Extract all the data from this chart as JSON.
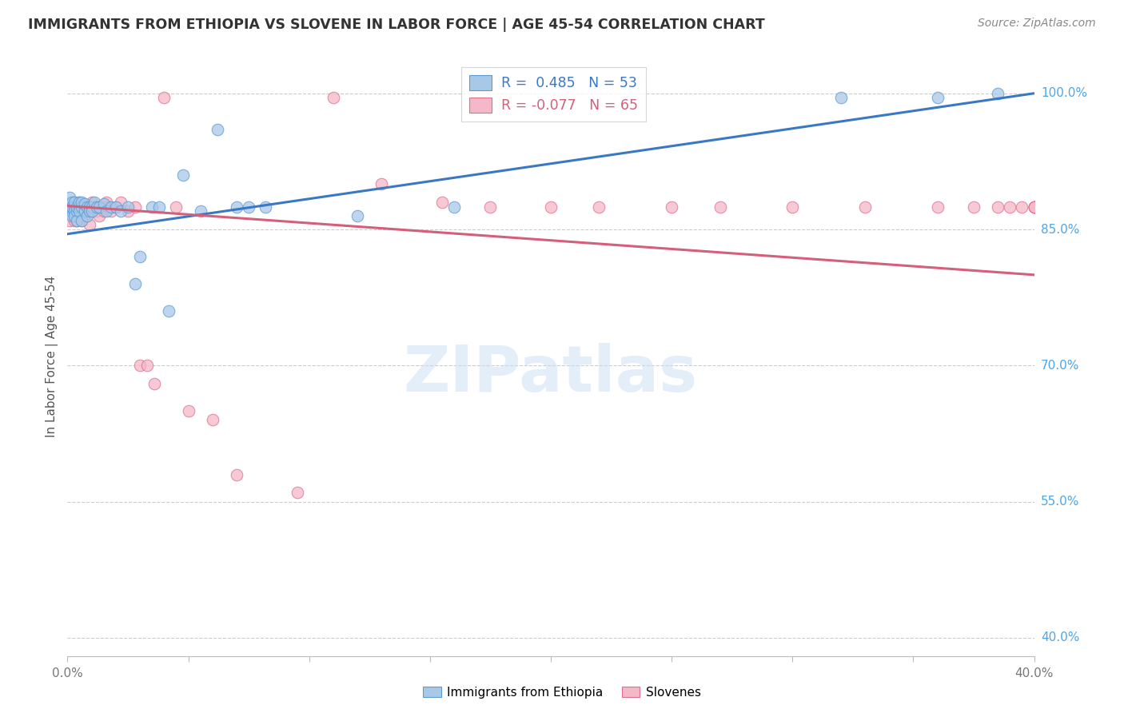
{
  "title": "IMMIGRANTS FROM ETHIOPIA VS SLOVENE IN LABOR FORCE | AGE 45-54 CORRELATION CHART",
  "source": "Source: ZipAtlas.com",
  "ylabel": "In Labor Force | Age 45-54",
  "ytick_values": [
    1.0,
    0.85,
    0.7,
    0.55,
    0.4
  ],
  "ytick_labels": [
    "100.0%",
    "85.0%",
    "70.0%",
    "55.0%",
    "40.0%"
  ],
  "xlim": [
    0.0,
    0.4
  ],
  "ylim": [
    0.38,
    1.04
  ],
  "legend_r_blue": " 0.485",
  "legend_n_blue": "53",
  "legend_r_pink": "-0.077",
  "legend_n_pink": "65",
  "blue_fill": "#a8c8e8",
  "blue_edge": "#5b9bd5",
  "pink_fill": "#f4b8c8",
  "pink_edge": "#e07090",
  "line_blue_color": "#3a78c3",
  "line_pink_color": "#d45f7a",
  "blue_line_x": [
    0.0,
    0.4
  ],
  "blue_line_y": [
    0.845,
    1.0
  ],
  "pink_line_x": [
    0.0,
    0.4
  ],
  "pink_line_y": [
    0.876,
    0.8
  ],
  "blue_x": [
    0.001,
    0.001,
    0.001,
    0.002,
    0.002,
    0.002,
    0.002,
    0.003,
    0.003,
    0.003,
    0.003,
    0.004,
    0.004,
    0.004,
    0.005,
    0.005,
    0.005,
    0.006,
    0.006,
    0.006,
    0.007,
    0.007,
    0.008,
    0.008,
    0.009,
    0.009,
    0.01,
    0.01,
    0.011,
    0.012,
    0.013,
    0.015,
    0.016,
    0.018,
    0.02,
    0.022,
    0.025,
    0.028,
    0.03,
    0.035,
    0.038,
    0.042,
    0.048,
    0.055,
    0.062,
    0.07,
    0.075,
    0.082,
    0.12,
    0.16,
    0.32,
    0.36,
    0.385
  ],
  "blue_y": [
    0.885,
    0.875,
    0.87,
    0.88,
    0.87,
    0.865,
    0.875,
    0.875,
    0.87,
    0.865,
    0.88,
    0.87,
    0.875,
    0.86,
    0.875,
    0.87,
    0.88,
    0.86,
    0.875,
    0.88,
    0.87,
    0.878,
    0.865,
    0.875,
    0.875,
    0.87,
    0.875,
    0.87,
    0.88,
    0.875,
    0.875,
    0.878,
    0.87,
    0.875,
    0.875,
    0.87,
    0.875,
    0.79,
    0.82,
    0.875,
    0.875,
    0.76,
    0.91,
    0.87,
    0.96,
    0.875,
    0.875,
    0.875,
    0.865,
    0.875,
    0.995,
    0.995,
    1.0
  ],
  "pink_x": [
    0.001,
    0.001,
    0.002,
    0.002,
    0.003,
    0.003,
    0.003,
    0.004,
    0.004,
    0.005,
    0.005,
    0.005,
    0.006,
    0.006,
    0.006,
    0.007,
    0.007,
    0.008,
    0.008,
    0.009,
    0.009,
    0.01,
    0.01,
    0.011,
    0.012,
    0.013,
    0.013,
    0.014,
    0.015,
    0.016,
    0.017,
    0.018,
    0.02,
    0.022,
    0.025,
    0.028,
    0.03,
    0.033,
    0.036,
    0.04,
    0.045,
    0.05,
    0.06,
    0.07,
    0.095,
    0.11,
    0.13,
    0.155,
    0.175,
    0.2,
    0.22,
    0.25,
    0.27,
    0.3,
    0.33,
    0.36,
    0.375,
    0.385,
    0.39,
    0.395,
    0.4,
    0.4,
    0.4,
    0.4,
    0.4
  ],
  "pink_y": [
    0.875,
    0.86,
    0.875,
    0.87,
    0.88,
    0.87,
    0.86,
    0.875,
    0.86,
    0.875,
    0.87,
    0.88,
    0.865,
    0.875,
    0.86,
    0.875,
    0.865,
    0.87,
    0.875,
    0.855,
    0.875,
    0.87,
    0.88,
    0.875,
    0.87,
    0.875,
    0.865,
    0.875,
    0.87,
    0.88,
    0.875,
    0.87,
    0.875,
    0.88,
    0.87,
    0.875,
    0.7,
    0.7,
    0.68,
    0.995,
    0.875,
    0.65,
    0.64,
    0.58,
    0.56,
    0.995,
    0.9,
    0.88,
    0.875,
    0.875,
    0.875,
    0.875,
    0.875,
    0.875,
    0.875,
    0.875,
    0.875,
    0.875,
    0.875,
    0.875,
    0.875,
    0.875,
    0.875,
    0.875,
    0.875
  ]
}
